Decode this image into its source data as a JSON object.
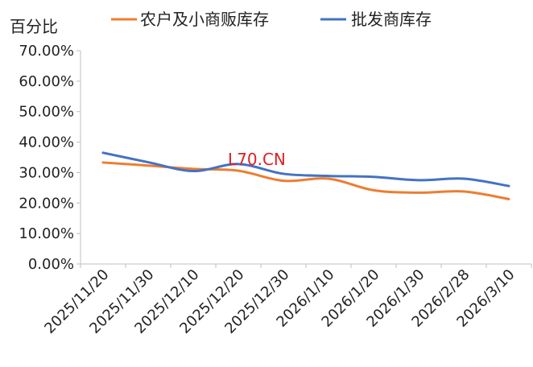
{
  "chart_data": {
    "type": "line",
    "ylabel": "百分比",
    "categories": [
      "2025/11/20",
      "2025/11/30",
      "2025/12/10",
      "2025/12/20",
      "2025/12/30",
      "2026/1/10",
      "2026/1/20",
      "2026/1/30",
      "2026/2/28",
      "2026/3/10"
    ],
    "y_ticks": [
      "0.00%",
      "10.00%",
      "20.00%",
      "30.00%",
      "40.00%",
      "50.00%",
      "60.00%",
      "70.00%"
    ],
    "ylim": [
      0,
      70
    ],
    "grid": false,
    "legend_position": "top",
    "series": [
      {
        "name": "农户及小商贩库存",
        "color": "#ed7d31",
        "values": [
          33.3,
          32.3,
          31.2,
          30.6,
          27.3,
          28.0,
          24.2,
          23.4,
          23.8,
          21.3
        ]
      },
      {
        "name": "批发商库存",
        "color": "#4472c4",
        "values": [
          36.5,
          33.4,
          30.5,
          32.8,
          29.6,
          28.9,
          28.6,
          27.5,
          28.0,
          25.6
        ]
      }
    ],
    "watermark": "L70.CN"
  }
}
